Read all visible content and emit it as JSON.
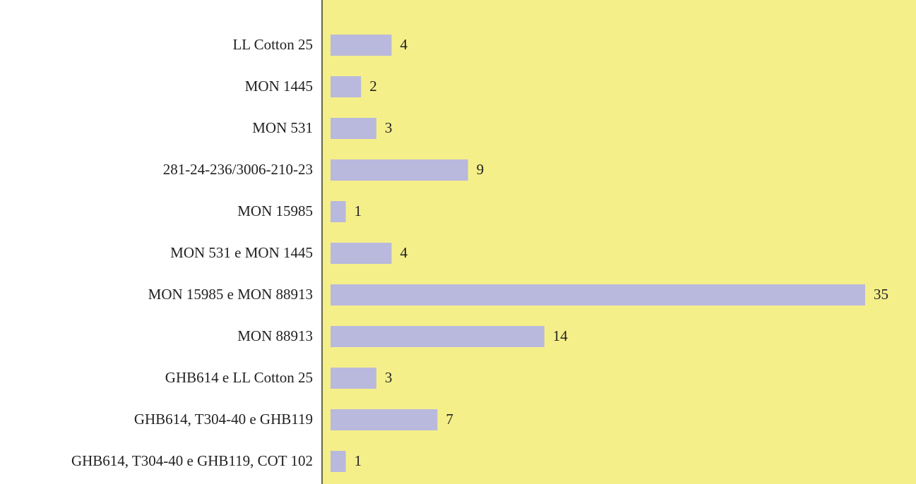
{
  "chart_data": {
    "type": "barh",
    "categories": [
      "LL Cotton 25",
      "MON 1445",
      "MON 531",
      "281-24-236/3006-210-23",
      "MON 15985",
      "MON 531 e MON 1445",
      "MON 15985 e MON 88913",
      "MON 88913",
      "GHB614 e LL Cotton 25",
      "GHB614, T304-40 e GHB119",
      "GHB614, T304-40 e GHB119, COT 102"
    ],
    "values": [
      4,
      2,
      3,
      9,
      1,
      4,
      35,
      14,
      3,
      7,
      1
    ],
    "color": "#b9b9dd",
    "background": "#f5ef8a",
    "xlim": [
      0,
      35
    ]
  }
}
